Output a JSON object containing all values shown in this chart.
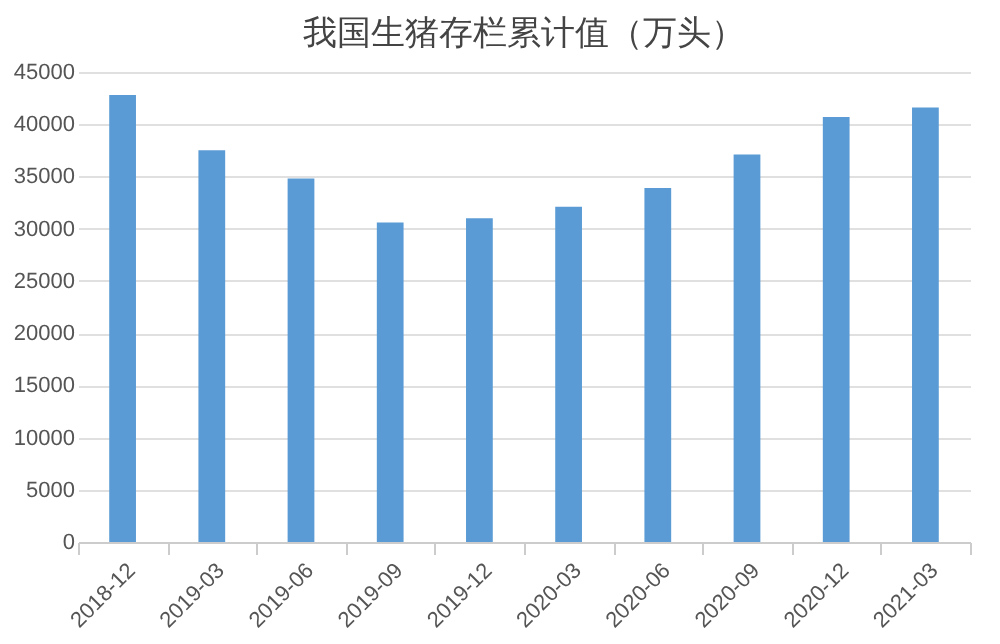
{
  "chart_data": {
    "type": "bar",
    "title": "我国生猪存栏累计值（万头）",
    "categories": [
      "2018-12",
      "2019-03",
      "2019-06",
      "2019-09",
      "2019-12",
      "2020-03",
      "2020-06",
      "2020-09",
      "2020-12",
      "2021-03"
    ],
    "values": [
      42800,
      37500,
      34800,
      30600,
      31000,
      32100,
      33900,
      37100,
      40700,
      41600
    ],
    "color": "#5b9bd5",
    "ylim": [
      0,
      45000
    ],
    "yticks": [
      0,
      5000,
      10000,
      15000,
      20000,
      25000,
      30000,
      35000,
      40000,
      45000
    ],
    "grid": "y"
  }
}
